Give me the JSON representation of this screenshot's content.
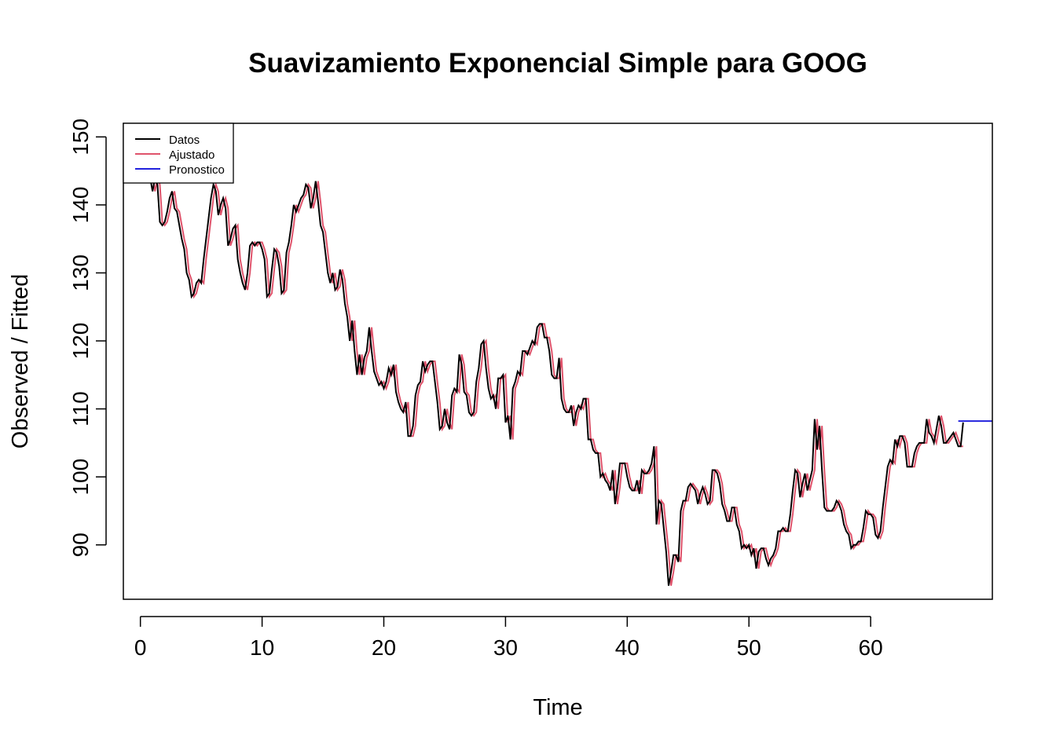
{
  "chart_data": {
    "type": "line",
    "title": "Suavizamiento Exponencial Simple para GOOG",
    "xlabel": "Time",
    "ylabel": "Observed / Fitted",
    "xlim": [
      -1.4,
      70
    ],
    "ylim": [
      82,
      152
    ],
    "x_ticks": [
      0,
      10,
      20,
      30,
      40,
      50,
      60
    ],
    "x_tick_labels": [
      "0",
      "10",
      "20",
      "30",
      "40",
      "50",
      "60"
    ],
    "y_ticks": [
      90,
      100,
      110,
      120,
      130,
      140,
      150
    ],
    "y_tick_labels": [
      "90",
      "100",
      "110",
      "120",
      "130",
      "140",
      "150"
    ],
    "grid": false,
    "legend_position": "top-left",
    "x_start": 0,
    "x_step": 0.2,
    "series": [
      {
        "name": "Datos",
        "color": "#000000",
        "values": [
          148,
          147,
          145,
          146,
          144,
          142,
          144,
          143,
          137.5,
          137,
          137.5,
          139,
          141,
          142,
          139.5,
          139,
          137,
          135,
          133.5,
          130,
          129,
          126.5,
          127,
          128.5,
          129,
          128.5,
          132,
          135,
          138,
          141,
          143,
          142,
          138.5,
          140,
          141,
          139.5,
          134,
          135,
          136.5,
          137,
          132,
          130,
          128.5,
          127.5,
          130,
          134,
          134.5,
          134,
          134.5,
          134.5,
          133.5,
          132,
          126.5,
          127,
          130.5,
          133.5,
          133,
          131,
          127,
          127.5,
          133,
          134.5,
          137,
          140,
          139,
          140,
          141,
          141.5,
          143,
          142.5,
          139.5,
          141,
          143.5,
          140.5,
          137,
          136,
          133,
          130,
          128.5,
          130,
          127.5,
          128,
          130.5,
          129,
          125.5,
          123.5,
          120,
          123,
          118.5,
          115,
          118,
          115,
          117.5,
          118.5,
          122,
          118.5,
          115.5,
          114.5,
          113.5,
          114,
          113,
          114,
          116,
          115,
          116.5,
          112.5,
          111,
          110,
          109.5,
          111,
          106,
          106,
          107.5,
          112,
          113.5,
          114,
          117,
          115.5,
          116.5,
          117,
          117,
          114,
          111,
          107,
          107.5,
          110,
          108,
          107,
          112,
          113,
          112.5,
          118,
          116.5,
          112.5,
          112,
          109.5,
          109,
          109.5,
          114,
          116,
          119.5,
          120,
          116,
          113,
          111.5,
          112,
          110,
          114.5,
          114.5,
          115,
          108,
          109,
          105.5,
          113,
          114,
          115.5,
          115,
          118.5,
          118.5,
          118,
          119,
          120,
          119.5,
          122,
          122.5,
          122.5,
          120.5,
          120.5,
          118.5,
          115,
          114.5,
          114.5,
          117.5,
          111.5,
          110,
          109.5,
          109.5,
          110.5,
          107.5,
          109.5,
          110.5,
          110,
          111.5,
          111.5,
          105.5,
          105.5,
          104,
          103.5,
          103.5,
          100,
          100.5,
          99.5,
          99,
          98,
          101,
          96,
          98.5,
          102,
          102,
          102,
          100,
          98.5,
          98,
          98,
          99.5,
          97.5,
          101,
          100.5,
          100.5,
          101,
          102,
          104.5,
          93,
          96.5,
          96,
          92.5,
          89,
          84,
          86,
          88.5,
          88.5,
          87.5,
          95,
          96.5,
          96.5,
          98.5,
          99,
          98.5,
          98,
          96,
          97.5,
          98.5,
          97.5,
          96,
          96.5,
          101,
          101,
          100.5,
          99,
          96,
          95,
          93.5,
          93.5,
          95.5,
          95.5,
          93,
          92,
          89.5,
          90,
          89.5,
          90,
          88.5,
          89.5,
          86.5,
          89,
          89.5,
          89.5,
          88,
          87,
          88,
          88.5,
          89.5,
          92,
          92,
          92.5,
          92,
          92,
          94.5,
          98,
          101,
          100.5,
          97,
          99,
          100.5,
          98,
          99.5,
          101,
          108.5,
          104,
          107.5,
          101,
          95.5,
          95,
          95,
          95,
          95.5,
          96.5,
          96,
          95,
          93,
          92,
          91.5,
          89.5,
          90,
          90,
          90.5,
          90.5,
          92.5,
          95,
          94.5,
          94.5,
          94,
          91.5,
          91,
          92,
          95.5,
          98.5,
          101.5,
          102.5,
          102,
          105.5,
          104.5,
          106,
          106,
          105,
          101.5,
          101.5,
          101.5,
          103.5,
          104.5,
          105,
          105,
          105,
          108.5,
          106.5,
          106,
          105,
          107,
          109,
          107.5,
          105,
          105,
          105.5,
          106,
          106.5,
          105.5,
          104.5,
          104.5,
          108
        ]
      },
      {
        "name": "Ajustado",
        "color": "#DF536B",
        "values": []
      },
      {
        "name": "Pronostico",
        "color": "#2222DD",
        "x": [
          67.2,
          70
        ],
        "values": [
          108.2,
          108.2
        ]
      }
    ]
  }
}
